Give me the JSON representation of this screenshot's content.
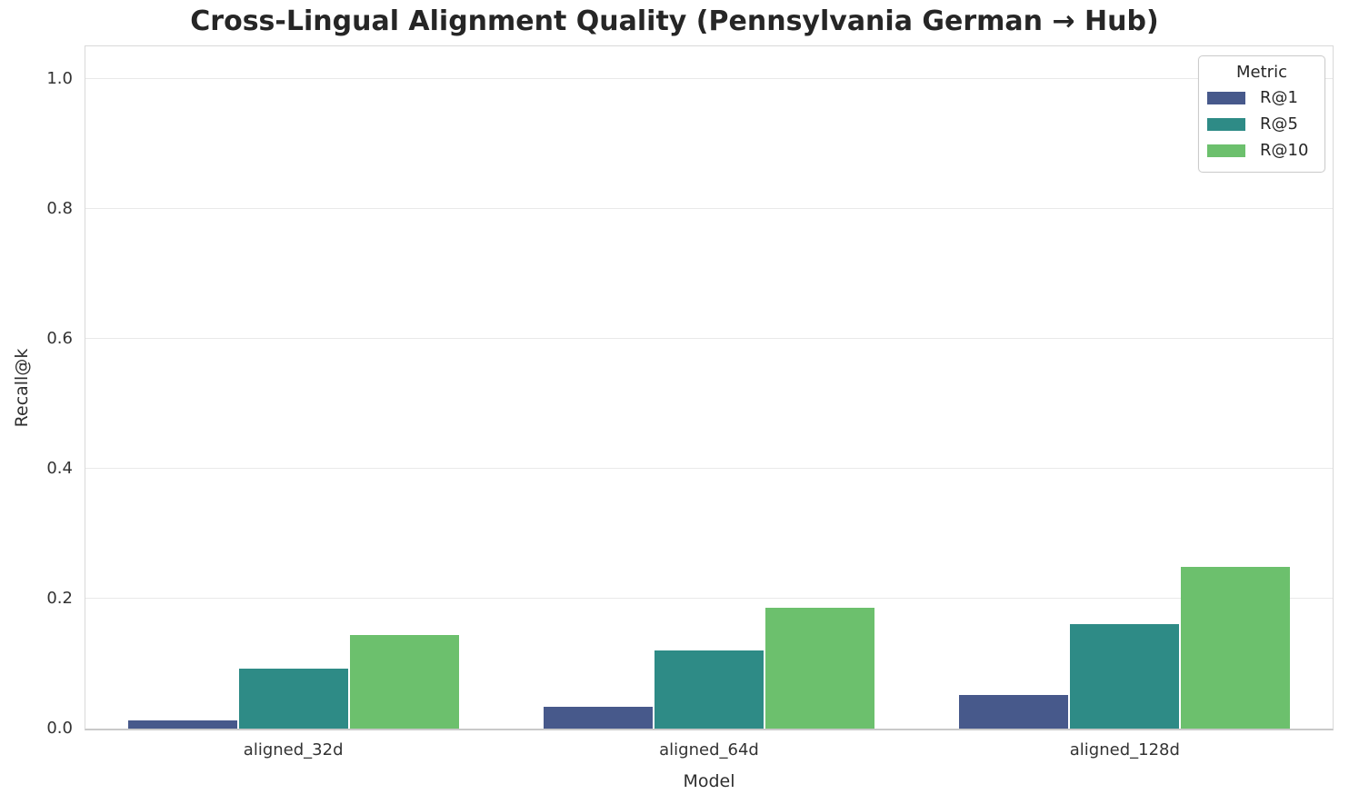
{
  "title": "Cross-Lingual Alignment Quality (Pennsylvania German → Hub)",
  "chart_data": {
    "type": "bar",
    "categories": [
      "aligned_32d",
      "aligned_64d",
      "aligned_128d"
    ],
    "series": [
      {
        "name": "R@1",
        "color": "#47598b",
        "values": [
          0.012,
          0.033,
          0.052
        ]
      },
      {
        "name": "R@5",
        "color": "#2e8b86",
        "values": [
          0.092,
          0.12,
          0.161
        ]
      },
      {
        "name": "R@10",
        "color": "#6cc06d",
        "values": [
          0.144,
          0.186,
          0.249
        ]
      }
    ],
    "xlabel": "Model",
    "ylabel": "Recall@k",
    "ylim": [
      0,
      1.05
    ],
    "yticks": [
      0.0,
      0.2,
      0.4,
      0.6,
      0.8,
      1.0
    ],
    "ytick_labels": [
      "0.0",
      "0.2",
      "0.4",
      "0.6",
      "0.8",
      "1.0"
    ],
    "legend_title": "Metric",
    "legend_position": "upper right",
    "grid": true,
    "bar_group_width_fraction": 0.8
  },
  "colors": {
    "background": "#ffffff",
    "grid": "#e9e9e9",
    "spine": "#d9d9d9",
    "axis_line": "#c9c9c9",
    "title_text": "#262626",
    "tick_text": "#333333",
    "legend_border": "#cccccc"
  }
}
